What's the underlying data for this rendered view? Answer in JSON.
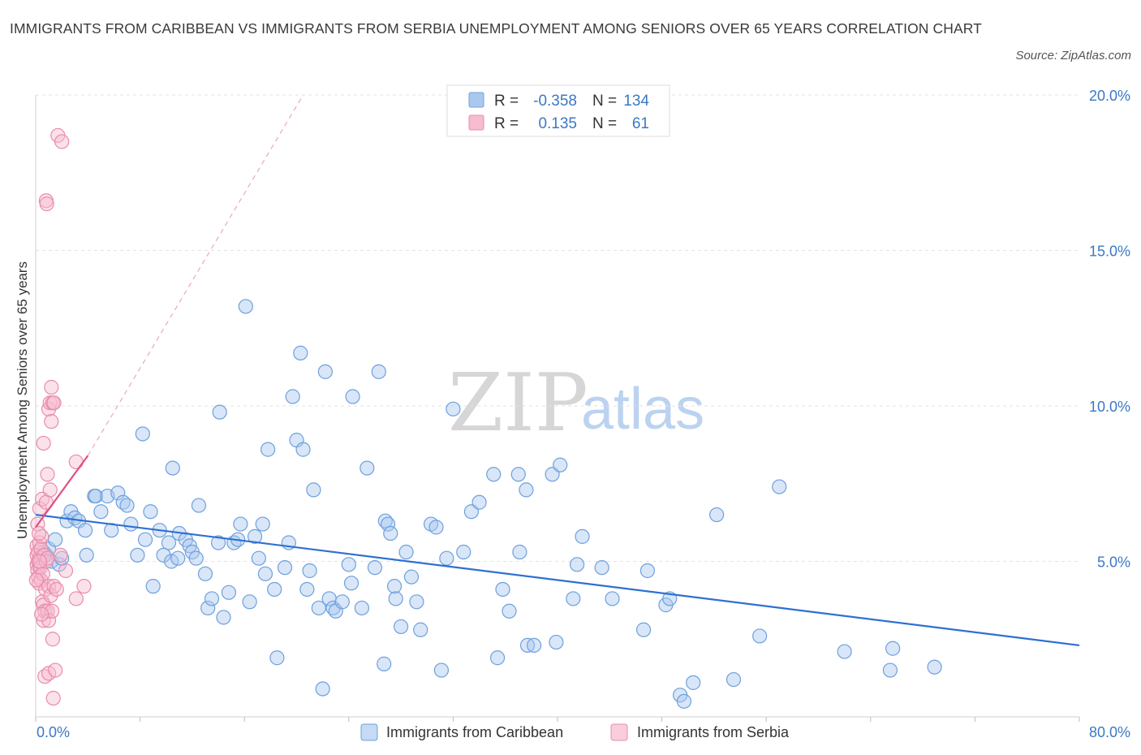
{
  "header": {
    "title": "IMMIGRANTS FROM CARIBBEAN VS IMMIGRANTS FROM SERBIA UNEMPLOYMENT AMONG SENIORS OVER 65 YEARS CORRELATION CHART",
    "source": "Source: ZipAtlas.com"
  },
  "watermark": {
    "zip": "ZIP",
    "atlas": "atlas"
  },
  "legend": {
    "r_label": "R =",
    "n_label": "N =",
    "rows": [
      {
        "r": "-0.358",
        "n": "134",
        "color": "#a9c8f0",
        "stroke": "#6ea0dc"
      },
      {
        "r": "0.135",
        "n": "61",
        "color": "#f7bcd0",
        "stroke": "#e88cab"
      }
    ]
  },
  "chart_data": {
    "type": "scatter",
    "title": "IMMIGRANTS FROM CARIBBEAN VS IMMIGRANTS FROM SERBIA UNEMPLOYMENT AMONG SENIORS OVER 65 YEARS CORRELATION CHART",
    "xlabel": "",
    "ylabel": "Unemployment Among Seniors over 65 years",
    "xlim": [
      0,
      80
    ],
    "ylim": [
      0,
      20
    ],
    "x_tick_labels": [
      "0.0%",
      "80.0%"
    ],
    "y_ticks": [
      5,
      10,
      15,
      20
    ],
    "y_tick_labels": [
      "5.0%",
      "10.0%",
      "15.0%",
      "20.0%"
    ],
    "grid": true,
    "series": [
      {
        "name": "Immigrants from Caribbean",
        "color": "#a9c8f0",
        "stroke": "#6ea0dc",
        "r": -0.358,
        "n": 134,
        "trend": {
          "x": [
            0,
            80
          ],
          "y": [
            6.5,
            2.3
          ],
          "color": "#2f6fd1"
        },
        "points": [
          [
            0.3,
            4.9
          ],
          [
            0.5,
            5.1
          ],
          [
            0.6,
            5.3
          ],
          [
            0.8,
            5.2
          ],
          [
            1.0,
            5.4
          ],
          [
            1.2,
            5.0
          ],
          [
            1.5,
            5.7
          ],
          [
            1.8,
            4.9
          ],
          [
            2.0,
            5.1
          ],
          [
            2.4,
            6.3
          ],
          [
            2.7,
            6.6
          ],
          [
            3.0,
            6.4
          ],
          [
            3.3,
            6.3
          ],
          [
            3.8,
            6.0
          ],
          [
            3.9,
            5.2
          ],
          [
            4.5,
            7.1
          ],
          [
            4.6,
            7.1
          ],
          [
            5.0,
            6.6
          ],
          [
            5.5,
            7.1
          ],
          [
            5.8,
            6.0
          ],
          [
            6.3,
            7.2
          ],
          [
            6.7,
            6.9
          ],
          [
            7.0,
            6.8
          ],
          [
            7.3,
            6.2
          ],
          [
            7.8,
            5.2
          ],
          [
            8.2,
            9.1
          ],
          [
            8.4,
            5.7
          ],
          [
            8.8,
            6.6
          ],
          [
            9.0,
            4.2
          ],
          [
            9.5,
            6.0
          ],
          [
            9.8,
            5.2
          ],
          [
            10.2,
            5.6
          ],
          [
            10.4,
            5.0
          ],
          [
            10.5,
            8.0
          ],
          [
            10.9,
            5.1
          ],
          [
            11.0,
            5.9
          ],
          [
            11.5,
            5.7
          ],
          [
            11.8,
            5.5
          ],
          [
            12.0,
            5.3
          ],
          [
            12.3,
            5.1
          ],
          [
            12.5,
            6.8
          ],
          [
            13.0,
            4.6
          ],
          [
            13.2,
            3.5
          ],
          [
            13.5,
            3.8
          ],
          [
            14.0,
            5.6
          ],
          [
            14.1,
            9.8
          ],
          [
            14.4,
            3.2
          ],
          [
            14.8,
            4.0
          ],
          [
            15.2,
            5.6
          ],
          [
            15.5,
            5.7
          ],
          [
            15.7,
            6.2
          ],
          [
            16.1,
            13.2
          ],
          [
            16.4,
            3.7
          ],
          [
            16.8,
            5.8
          ],
          [
            17.1,
            5.1
          ],
          [
            17.4,
            6.2
          ],
          [
            17.6,
            4.6
          ],
          [
            17.8,
            8.6
          ],
          [
            18.3,
            4.1
          ],
          [
            18.5,
            1.9
          ],
          [
            19.1,
            4.8
          ],
          [
            19.4,
            5.6
          ],
          [
            19.7,
            10.3
          ],
          [
            20.0,
            8.9
          ],
          [
            20.3,
            11.7
          ],
          [
            20.5,
            8.6
          ],
          [
            20.8,
            4.1
          ],
          [
            21.0,
            4.7
          ],
          [
            21.3,
            7.3
          ],
          [
            21.7,
            3.5
          ],
          [
            22.0,
            0.9
          ],
          [
            22.2,
            11.1
          ],
          [
            22.5,
            3.8
          ],
          [
            22.8,
            3.5
          ],
          [
            23.0,
            3.4
          ],
          [
            23.5,
            3.7
          ],
          [
            24.0,
            4.9
          ],
          [
            24.2,
            4.3
          ],
          [
            24.3,
            10.3
          ],
          [
            25.0,
            3.5
          ],
          [
            25.4,
            8.0
          ],
          [
            26.0,
            4.8
          ],
          [
            26.3,
            11.1
          ],
          [
            26.7,
            1.7
          ],
          [
            26.8,
            6.3
          ],
          [
            27.0,
            6.2
          ],
          [
            27.2,
            5.9
          ],
          [
            27.5,
            4.2
          ],
          [
            27.6,
            3.8
          ],
          [
            28.0,
            2.9
          ],
          [
            28.4,
            5.3
          ],
          [
            28.8,
            4.5
          ],
          [
            29.2,
            3.7
          ],
          [
            29.5,
            2.8
          ],
          [
            30.3,
            6.2
          ],
          [
            30.7,
            6.1
          ],
          [
            31.1,
            1.5
          ],
          [
            31.5,
            5.1
          ],
          [
            32.0,
            9.9
          ],
          [
            32.8,
            5.3
          ],
          [
            33.4,
            6.6
          ],
          [
            34.0,
            6.9
          ],
          [
            35.1,
            7.8
          ],
          [
            35.4,
            1.9
          ],
          [
            35.8,
            4.1
          ],
          [
            36.3,
            3.4
          ],
          [
            37.0,
            7.8
          ],
          [
            37.1,
            5.3
          ],
          [
            37.6,
            7.3
          ],
          [
            37.7,
            2.3
          ],
          [
            38.2,
            2.3
          ],
          [
            39.6,
            7.8
          ],
          [
            39.9,
            2.4
          ],
          [
            40.2,
            8.1
          ],
          [
            41.2,
            3.8
          ],
          [
            41.5,
            4.9
          ],
          [
            41.9,
            5.8
          ],
          [
            43.4,
            4.8
          ],
          [
            44.2,
            3.8
          ],
          [
            46.6,
            2.8
          ],
          [
            46.9,
            4.7
          ],
          [
            48.3,
            3.6
          ],
          [
            48.6,
            3.8
          ],
          [
            49.4,
            0.7
          ],
          [
            49.7,
            0.5
          ],
          [
            50.4,
            1.1
          ],
          [
            52.2,
            6.5
          ],
          [
            53.5,
            1.2
          ],
          [
            55.5,
            2.6
          ],
          [
            57.0,
            7.4
          ],
          [
            62.0,
            2.1
          ],
          [
            65.5,
            1.5
          ],
          [
            65.7,
            2.2
          ],
          [
            68.9,
            1.6
          ]
        ]
      },
      {
        "name": "Immigrants from Serbia",
        "color": "#f7bcd0",
        "stroke": "#e88cab",
        "r": 0.135,
        "n": 61,
        "trend": {
          "x": [
            0,
            4
          ],
          "y": [
            6.1,
            8.4
          ],
          "color": "#e0507f",
          "extension_to": [
            20.5,
            20.0
          ]
        },
        "points": [
          [
            0.1,
            5.5
          ],
          [
            0.1,
            5.2
          ],
          [
            0.1,
            4.9
          ],
          [
            0.15,
            4.7
          ],
          [
            0.2,
            4.5
          ],
          [
            0.2,
            5.0
          ],
          [
            0.2,
            5.3
          ],
          [
            0.25,
            4.3
          ],
          [
            0.3,
            5.6
          ],
          [
            0.3,
            5.1
          ],
          [
            0.3,
            6.7
          ],
          [
            0.35,
            4.8
          ],
          [
            0.4,
            5.4
          ],
          [
            0.4,
            4.4
          ],
          [
            0.45,
            5.8
          ],
          [
            0.5,
            7.0
          ],
          [
            0.5,
            3.7
          ],
          [
            0.55,
            4.6
          ],
          [
            0.6,
            3.6
          ],
          [
            0.6,
            8.8
          ],
          [
            0.6,
            3.1
          ],
          [
            0.65,
            5.2
          ],
          [
            0.7,
            3.4
          ],
          [
            0.7,
            1.3
          ],
          [
            0.75,
            4.1
          ],
          [
            0.8,
            5.0
          ],
          [
            0.8,
            6.9
          ],
          [
            0.8,
            16.6
          ],
          [
            0.85,
            16.5
          ],
          [
            0.9,
            5.1
          ],
          [
            0.9,
            3.4
          ],
          [
            0.9,
            7.8
          ],
          [
            1.0,
            3.1
          ],
          [
            1.0,
            4.2
          ],
          [
            1.0,
            9.9
          ],
          [
            1.0,
            1.4
          ],
          [
            1.1,
            7.3
          ],
          [
            1.1,
            10.1
          ],
          [
            1.15,
            3.9
          ],
          [
            1.2,
            9.5
          ],
          [
            1.2,
            10.6
          ],
          [
            1.25,
            3.4
          ],
          [
            1.3,
            10.1
          ],
          [
            1.3,
            2.5
          ],
          [
            1.35,
            0.6
          ],
          [
            1.4,
            4.2
          ],
          [
            1.4,
            10.1
          ],
          [
            1.5,
            1.5
          ],
          [
            1.6,
            4.1
          ],
          [
            1.7,
            18.7
          ],
          [
            1.9,
            5.2
          ],
          [
            2.0,
            18.5
          ],
          [
            2.3,
            4.7
          ],
          [
            0.3,
            5.0
          ],
          [
            0.45,
            3.3
          ],
          [
            0.15,
            6.2
          ],
          [
            0.05,
            4.4
          ],
          [
            0.25,
            5.9
          ],
          [
            3.1,
            8.2
          ],
          [
            3.1,
            3.8
          ],
          [
            3.7,
            4.2
          ]
        ]
      }
    ]
  }
}
